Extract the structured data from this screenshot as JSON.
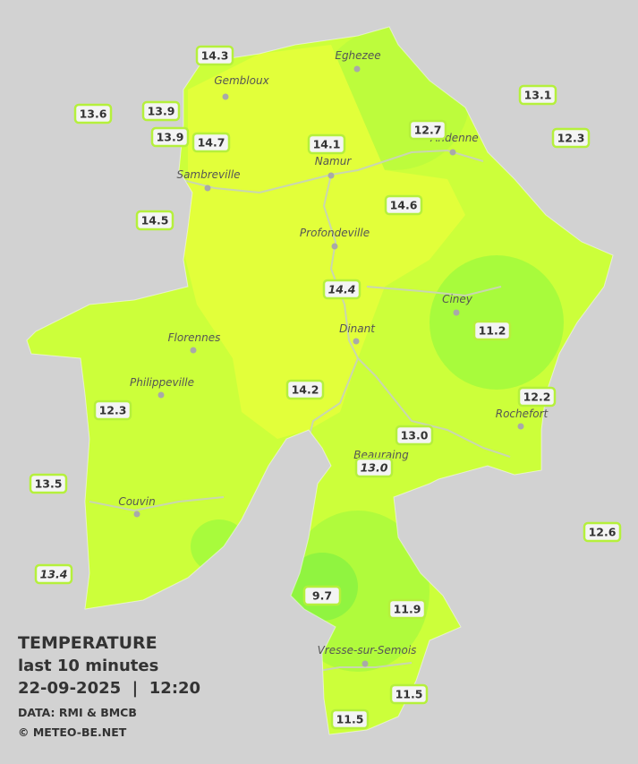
{
  "title": "TEMPERATURE",
  "subtitle": "last 10 minutes",
  "datetime": "22-09-2025  |  12:20",
  "source": "DATA: RMI & BMCB",
  "credit": "© METEO-BE.NET",
  "places": [
    "Eghezee",
    "Gembloux",
    "Andenne",
    "Namur",
    "Sambreville",
    "Profondeville",
    "Ciney",
    "Dinant",
    "Florennes",
    "Philippeville",
    "Rochefort",
    "Beauraing",
    "Couvin",
    "Vresse-sur-Semois"
  ],
  "stations": [
    {
      "value": "14.3"
    },
    {
      "value": "13.9"
    },
    {
      "value": "13.6"
    },
    {
      "value": "13.9"
    },
    {
      "value": "14.7"
    },
    {
      "value": "14.1"
    },
    {
      "value": "12.7"
    },
    {
      "value": "13.1"
    },
    {
      "value": "12.3"
    },
    {
      "value": "14.5"
    },
    {
      "value": "14.6"
    },
    {
      "value": "14.4",
      "italic": true
    },
    {
      "value": "11.2"
    },
    {
      "value": "12.2"
    },
    {
      "value": "14.2"
    },
    {
      "value": "12.3"
    },
    {
      "value": "13.0"
    },
    {
      "value": "13.0",
      "italic": true
    },
    {
      "value": "13.5"
    },
    {
      "value": "12.6"
    },
    {
      "value": "13.4",
      "italic": true
    },
    {
      "value": "9.7"
    },
    {
      "value": "11.9"
    },
    {
      "value": "11.5"
    },
    {
      "value": "11.5"
    }
  ]
}
